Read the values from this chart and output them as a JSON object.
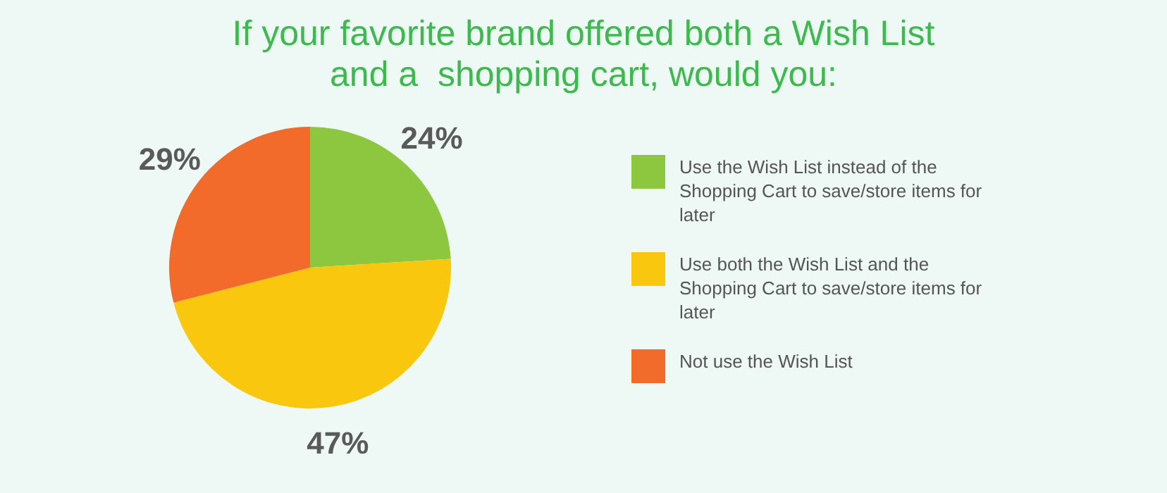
{
  "chart_data": {
    "type": "pie",
    "title": "If your favorite brand offered both a Wish List\nand a  shopping cart, would you:",
    "categories": [
      "Use the Wish List instead of the Shopping Cart to save/store items for later",
      "Use both the Wish List and the Shopping Cart to save/store items for later",
      "Not use the Wish List"
    ],
    "values": [
      24,
      47,
      29
    ],
    "value_labels": [
      "24%",
      "47%",
      "29%"
    ],
    "colors": [
      "#8dc63f",
      "#f9c80e",
      "#f26b2a"
    ],
    "legend": "right"
  }
}
